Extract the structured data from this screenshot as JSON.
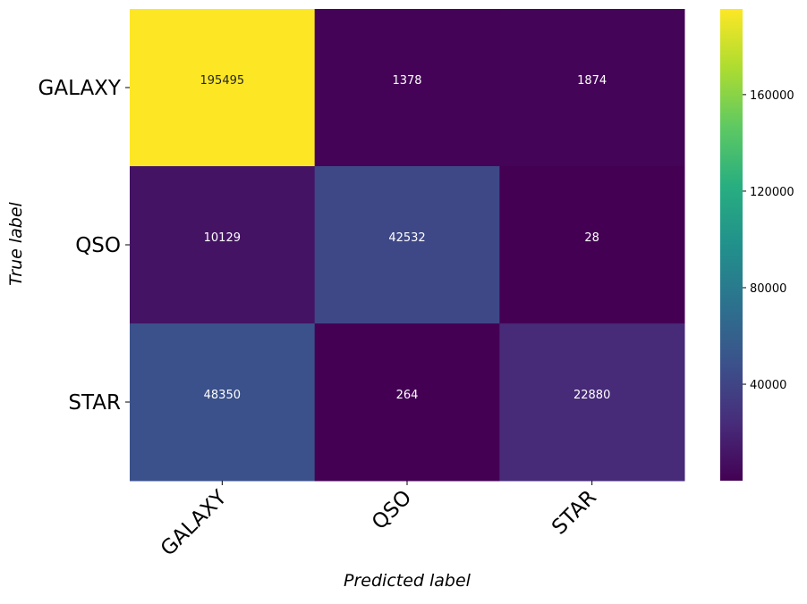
{
  "chart_data": {
    "type": "heatmap",
    "rows": [
      "GALAXY",
      "QSO",
      "STAR"
    ],
    "columns": [
      "GALAXY",
      "QSO",
      "STAR"
    ],
    "values": [
      [
        195495,
        1378,
        1874
      ],
      [
        10129,
        42532,
        28
      ],
      [
        48350,
        264,
        22880
      ]
    ],
    "cell_labels": [
      [
        "195495",
        "1378",
        "1874"
      ],
      [
        "10129",
        "42532",
        "28"
      ],
      [
        "48350",
        "264",
        "22880"
      ]
    ],
    "xlabel": "Predicted label",
    "ylabel": "True label",
    "colormap": "viridis",
    "colorbar": {
      "vmin": 28,
      "vmax": 195495,
      "ticks": [
        40000,
        80000,
        120000,
        160000
      ],
      "tick_labels": [
        "40000",
        "80000",
        "120000",
        "160000"
      ]
    },
    "x_tick_rotation_deg": 45
  }
}
